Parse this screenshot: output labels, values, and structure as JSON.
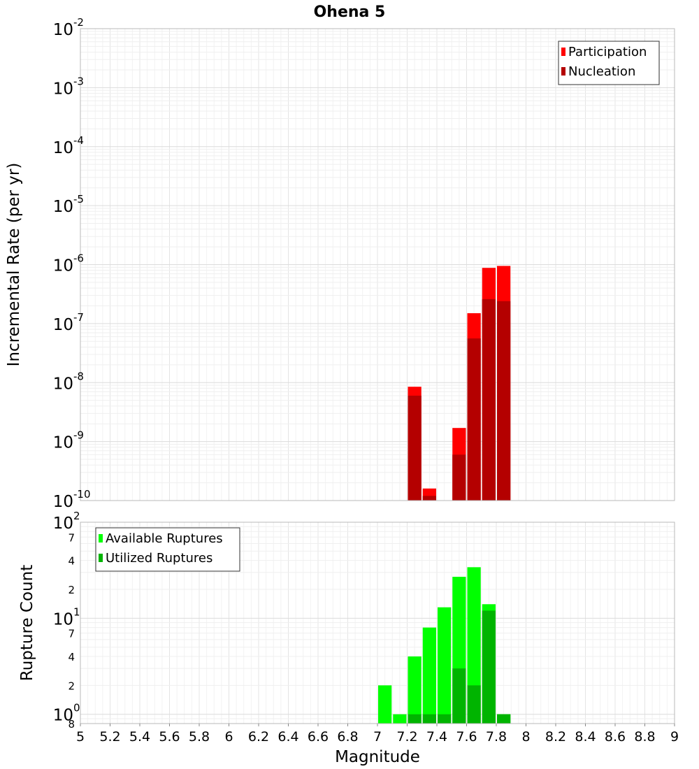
{
  "chart_data": [
    {
      "type": "bar",
      "title": "Ohena 5",
      "xlabel": "",
      "ylabel": "Incremental Rate (per yr)",
      "yscale": "log",
      "ylim": [
        1e-10,
        0.01
      ],
      "xlim": [
        5,
        9
      ],
      "bin_width": 0.1,
      "grid": true,
      "legend_position": "top-right",
      "y_ticks": [
        {
          "base": "10",
          "exp": "-2"
        },
        {
          "base": "10",
          "exp": "-3"
        },
        {
          "base": "10",
          "exp": "-4"
        },
        {
          "base": "10",
          "exp": "-5"
        },
        {
          "base": "10",
          "exp": "-6"
        },
        {
          "base": "10",
          "exp": "-7"
        },
        {
          "base": "10",
          "exp": "-8"
        },
        {
          "base": "10",
          "exp": "-9"
        },
        {
          "base": "10",
          "exp": "-10"
        }
      ],
      "x": [
        7.25,
        7.35,
        7.55,
        7.65,
        7.75,
        7.85
      ],
      "series": [
        {
          "name": "Participation",
          "color": "#ff0000",
          "values": [
            8.5e-09,
            1.6e-10,
            1.7e-09,
            1.5e-07,
            8.8e-07,
            9.5e-07
          ]
        },
        {
          "name": "Nucleation",
          "color": "#b40000",
          "values": [
            6e-09,
            1.2e-10,
            6e-10,
            5.6e-08,
            2.6e-07,
            2.4e-07
          ]
        }
      ]
    },
    {
      "type": "bar",
      "title": "",
      "xlabel": "Magnitude",
      "ylabel": "Rupture Count",
      "yscale": "log",
      "ylim": [
        0.8,
        100
      ],
      "xlim": [
        5,
        9
      ],
      "bin_width": 0.1,
      "grid": true,
      "legend_position": "top-left",
      "y_ticks": [
        {
          "base": "10",
          "exp": "2"
        },
        {
          "label": "7"
        },
        {
          "label": "4"
        },
        {
          "label": "2"
        },
        {
          "base": "10",
          "exp": "1"
        },
        {
          "label": "7"
        },
        {
          "label": "4"
        },
        {
          "label": "2"
        },
        {
          "base": "10",
          "exp": "0"
        },
        {
          "label": "8"
        }
      ],
      "x_ticks": [
        "5",
        "5.2",
        "5.4",
        "5.6",
        "5.8",
        "6",
        "6.2",
        "6.4",
        "6.6",
        "6.8",
        "7",
        "7.2",
        "7.4",
        "7.6",
        "7.8",
        "8",
        "8.2",
        "8.4",
        "8.6",
        "8.8",
        "9"
      ],
      "x": [
        7.05,
        7.15,
        7.25,
        7.35,
        7.45,
        7.55,
        7.65,
        7.75,
        7.85
      ],
      "series": [
        {
          "name": "Available Ruptures",
          "color": "#00ff00",
          "values": [
            2,
            1,
            4,
            8,
            13,
            27,
            34,
            14,
            1
          ]
        },
        {
          "name": "Utilized Ruptures",
          "color": "#00b400",
          "values": [
            0,
            0,
            1,
            1,
            1,
            3,
            2,
            12,
            1
          ]
        }
      ]
    }
  ]
}
